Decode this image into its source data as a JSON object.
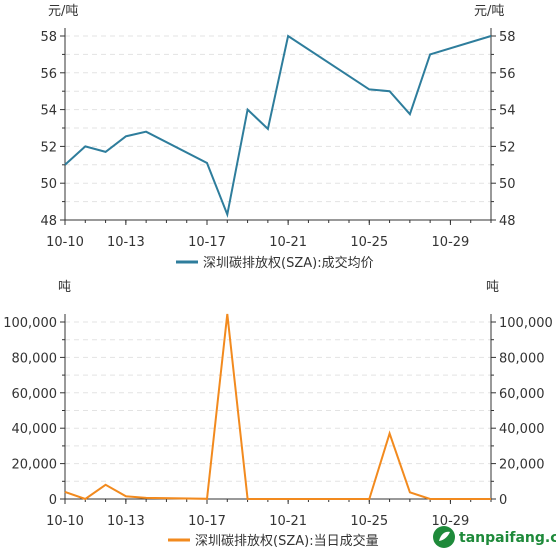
{
  "chart_data": [
    {
      "type": "line",
      "unit_left": "元/吨",
      "unit_right": "元/吨",
      "x": [
        "10-10",
        "10-11",
        "10-12",
        "10-13",
        "10-14",
        "10-17",
        "10-18",
        "10-19",
        "10-20",
        "10-21",
        "10-25",
        "10-26",
        "10-27",
        "10-28",
        "10-31"
      ],
      "xticks": [
        "10-10",
        "10-13",
        "10-17",
        "10-21",
        "10-25",
        "10-29"
      ],
      "series": [
        {
          "name": "深圳碳排放权(SZA):成交均价",
          "color": "#2e7d9c",
          "values": [
            51.0,
            52.0,
            51.7,
            52.55,
            52.8,
            51.1,
            48.3,
            54.0,
            52.95,
            58.0,
            55.1,
            55.0,
            53.75,
            57.0,
            58.0
          ]
        }
      ],
      "ylim": [
        48,
        58
      ],
      "yticks": [
        "48",
        "50",
        "52",
        "54",
        "56",
        "58"
      ],
      "legend": "bottom-center"
    },
    {
      "type": "line",
      "unit_left": "吨",
      "unit_right": "吨",
      "x": [
        "10-10",
        "10-11",
        "10-12",
        "10-13",
        "10-14",
        "10-17",
        "10-18",
        "10-19",
        "10-20",
        "10-21",
        "10-25",
        "10-26",
        "10-27",
        "10-28",
        "10-31"
      ],
      "xticks": [
        "10-10",
        "10-13",
        "10-17",
        "10-21",
        "10-25",
        "10-29"
      ],
      "series": [
        {
          "name": "深圳碳排放权(SZA):当日成交量",
          "color": "#f28a1e",
          "values": [
            4000,
            0,
            8000,
            1500,
            600,
            100,
            104500,
            0,
            0,
            0,
            0,
            37000,
            3800,
            0,
            0
          ]
        }
      ],
      "ylim": [
        0,
        100000
      ],
      "yticks": [
        "0",
        "20,000",
        "40,000",
        "60,000",
        "80,000",
        "100,000"
      ],
      "legend": "bottom-center"
    }
  ],
  "watermark": {
    "text": "tanpaifang.com",
    "color": "#1e8a3a"
  }
}
